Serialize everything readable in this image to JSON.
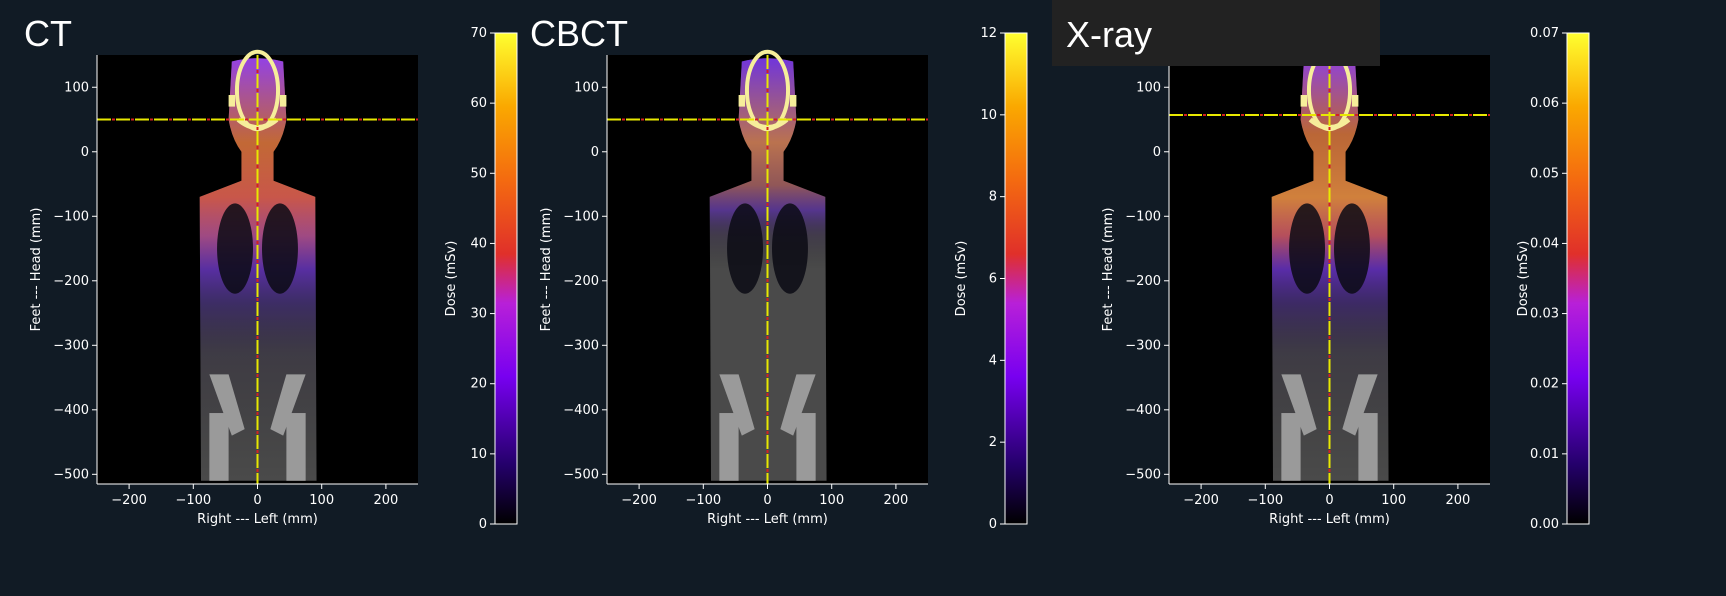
{
  "figure": {
    "background": "#111b25",
    "text_color": "#ffffff"
  },
  "chart_data": [
    {
      "type": "heatmap",
      "title": "CT",
      "xlabel": "Right --- Left (mm)",
      "ylabel": "Feet --- Head (mm)",
      "xlim": [
        -250,
        250
      ],
      "ylim": [
        -515,
        150
      ],
      "x_ticks": [
        -200,
        -100,
        0,
        100,
        200
      ],
      "y_ticks": [
        100,
        0,
        -100,
        -200,
        -300,
        -400,
        -500
      ],
      "crosshair": {
        "x": 0,
        "y": 50,
        "colors": [
          "#e8e800",
          "#d42020"
        ]
      },
      "colorbar": {
        "label": "Dose (mSv)",
        "min": 0,
        "max": 70,
        "ticks": [
          0,
          10,
          20,
          30,
          40,
          50,
          60,
          70
        ],
        "colormap": "gnuplot2"
      },
      "dose_overlay": "whole_body_high_head"
    },
    {
      "type": "heatmap",
      "title": "CBCT",
      "xlabel": "Right --- Left (mm)",
      "ylabel": "Feet --- Head (mm)",
      "xlim": [
        -250,
        250
      ],
      "ylim": [
        -515,
        150
      ],
      "x_ticks": [
        -200,
        -100,
        0,
        100,
        200
      ],
      "y_ticks": [
        100,
        0,
        -100,
        -200,
        -300,
        -400,
        -500
      ],
      "crosshair": {
        "x": 0,
        "y": 50,
        "colors": [
          "#e8e800",
          "#d42020"
        ]
      },
      "colorbar": {
        "label": "Dose (mSv)",
        "min": 0,
        "max": 12,
        "ticks": [
          0,
          2,
          4,
          6,
          8,
          10,
          12
        ],
        "colormap": "gnuplot2"
      },
      "dose_overlay": "head_neck_only"
    },
    {
      "type": "heatmap",
      "title": "X-ray",
      "xlabel": "Right --- Left (mm)",
      "ylabel": "Feet --- Head (mm)",
      "xlim": [
        -250,
        250
      ],
      "ylim": [
        -515,
        150
      ],
      "x_ticks": [
        -200,
        -100,
        0,
        100,
        200
      ],
      "y_ticks": [
        100,
        0,
        -100,
        -200,
        -300,
        -400,
        -500
      ],
      "crosshair": {
        "x": 0,
        "y": 57,
        "colors": [
          "#e8e800",
          "#d42020"
        ]
      },
      "colorbar": {
        "label": "Dose (mSv)",
        "min": 0,
        "max": 0.07,
        "ticks": [
          "0.00",
          "0.01",
          "0.02",
          "0.03",
          "0.04",
          "0.05",
          "0.06",
          "0.07"
        ],
        "colormap": "gnuplot2"
      },
      "dose_overlay": "chest_high"
    }
  ]
}
